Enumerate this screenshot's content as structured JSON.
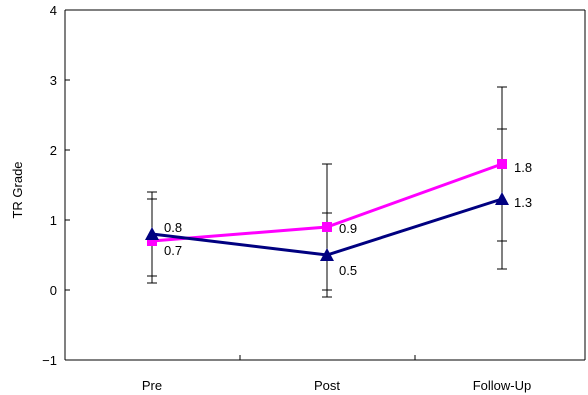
{
  "chart_data": {
    "type": "line",
    "title": "",
    "xlabel": "",
    "ylabel": "TR Grade",
    "categories": [
      "Pre",
      "Post",
      "Follow-Up"
    ],
    "ylim": [
      -1,
      4
    ],
    "yticks": [
      "−1",
      "0",
      "1",
      "2",
      "3",
      "4"
    ],
    "grid": false,
    "legend": "none",
    "series": [
      {
        "color": "#ff00ff",
        "marker": "square",
        "values": [
          0.7,
          0.9,
          1.8
        ],
        "labels": [
          "0.7",
          "0.9",
          "1.8"
        ],
        "error_low": [
          0.2,
          0.0,
          0.7
        ],
        "error_high": [
          1.3,
          1.8,
          2.9
        ]
      },
      {
        "color": "#000080",
        "marker": "triangle",
        "values": [
          0.8,
          0.5,
          1.3
        ],
        "labels": [
          "0.8",
          "0.5",
          "1.3"
        ],
        "error_low": [
          0.1,
          -0.1,
          0.3
        ],
        "error_high": [
          1.4,
          1.1,
          2.3
        ]
      }
    ]
  }
}
